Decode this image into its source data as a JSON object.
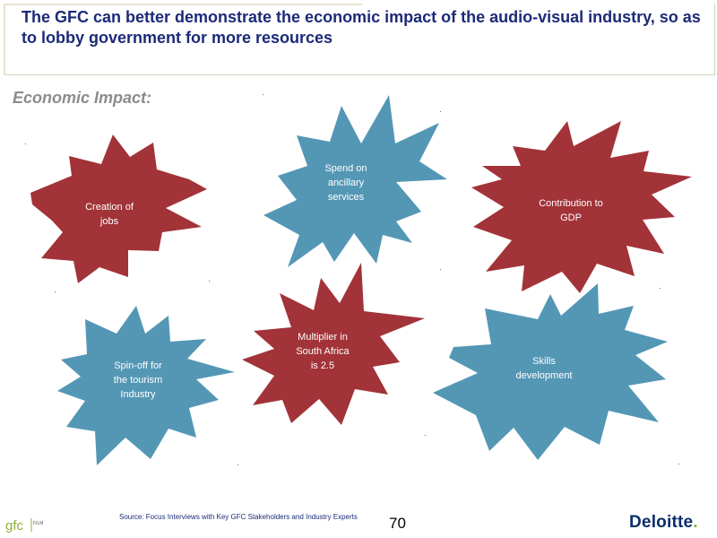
{
  "header": {
    "title": "The GFC can better demonstrate the economic impact of the audio-visual industry, so as to lobby government for more resources"
  },
  "subtitle": "Economic Impact:",
  "colors": {
    "red": "#a23338",
    "blue": "#5497b5",
    "title": "#1d2a78"
  },
  "bursts": [
    {
      "label": "Creation of\njobs",
      "color": "red"
    },
    {
      "label": "Spend on\nancillary\nservices",
      "color": "blue"
    },
    {
      "label": "Contribution to\nGDP",
      "color": "red"
    },
    {
      "label": "Spin-off for\nthe tourism\nIndustry",
      "color": "blue"
    },
    {
      "label": "Multiplier in\nSouth Africa\nis 2.5",
      "color": "red"
    },
    {
      "label": "Skills\ndevelopment",
      "color": "blue"
    }
  ],
  "footer": {
    "source": "Source: Focus Interviews with Key GFC Stakeholders and Industry Experts",
    "page_number": "70",
    "logo_left": "gfc FILM",
    "logo_right": "Deloitte",
    "logo_right_dot": "."
  }
}
